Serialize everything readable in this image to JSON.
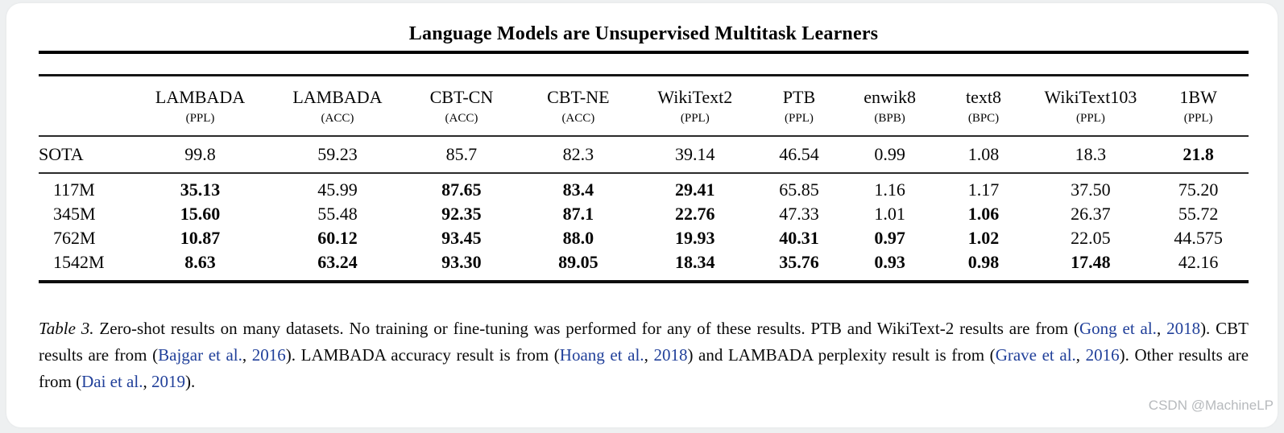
{
  "page": {
    "title": "Language Models are Unsupervised Multitask Learners",
    "watermark": "CSDN @MachineLP"
  },
  "colors": {
    "citation_link": "#21409a",
    "watermark_text": "#b7babd"
  },
  "table": {
    "columns": [
      {
        "name": "LAMBADA",
        "metric": "(PPL)"
      },
      {
        "name": "LAMBADA",
        "metric": "(ACC)"
      },
      {
        "name": "CBT-CN",
        "metric": "(ACC)"
      },
      {
        "name": "CBT-NE",
        "metric": "(ACC)"
      },
      {
        "name": "WikiText2",
        "metric": "(PPL)"
      },
      {
        "name": "PTB",
        "metric": "(PPL)"
      },
      {
        "name": "enwik8",
        "metric": "(BPB)"
      },
      {
        "name": "text8",
        "metric": "(BPC)"
      },
      {
        "name": "WikiText103",
        "metric": "(PPL)"
      },
      {
        "name": "1BW",
        "metric": "(PPL)"
      }
    ],
    "sota_row": {
      "label": "SOTA",
      "cells": [
        {
          "v": "99.8",
          "bold": false
        },
        {
          "v": "59.23",
          "bold": false
        },
        {
          "v": "85.7",
          "bold": false
        },
        {
          "v": "82.3",
          "bold": false
        },
        {
          "v": "39.14",
          "bold": false
        },
        {
          "v": "46.54",
          "bold": false
        },
        {
          "v": "0.99",
          "bold": false
        },
        {
          "v": "1.08",
          "bold": false
        },
        {
          "v": "18.3",
          "bold": false
        },
        {
          "v": "21.8",
          "bold": true
        }
      ]
    },
    "model_rows": [
      {
        "label": "117M",
        "cells": [
          {
            "v": "35.13",
            "bold": true
          },
          {
            "v": "45.99",
            "bold": false
          },
          {
            "v": "87.65",
            "bold": true
          },
          {
            "v": "83.4",
            "bold": true
          },
          {
            "v": "29.41",
            "bold": true
          },
          {
            "v": "65.85",
            "bold": false
          },
          {
            "v": "1.16",
            "bold": false
          },
          {
            "v": "1.17",
            "bold": false
          },
          {
            "v": "37.50",
            "bold": false
          },
          {
            "v": "75.20",
            "bold": false
          }
        ]
      },
      {
        "label": "345M",
        "cells": [
          {
            "v": "15.60",
            "bold": true
          },
          {
            "v": "55.48",
            "bold": false
          },
          {
            "v": "92.35",
            "bold": true
          },
          {
            "v": "87.1",
            "bold": true
          },
          {
            "v": "22.76",
            "bold": true
          },
          {
            "v": "47.33",
            "bold": false
          },
          {
            "v": "1.01",
            "bold": false
          },
          {
            "v": "1.06",
            "bold": true
          },
          {
            "v": "26.37",
            "bold": false
          },
          {
            "v": "55.72",
            "bold": false
          }
        ]
      },
      {
        "label": "762M",
        "cells": [
          {
            "v": "10.87",
            "bold": true
          },
          {
            "v": "60.12",
            "bold": true
          },
          {
            "v": "93.45",
            "bold": true
          },
          {
            "v": "88.0",
            "bold": true
          },
          {
            "v": "19.93",
            "bold": true
          },
          {
            "v": "40.31",
            "bold": true
          },
          {
            "v": "0.97",
            "bold": true
          },
          {
            "v": "1.02",
            "bold": true
          },
          {
            "v": "22.05",
            "bold": false
          },
          {
            "v": "44.575",
            "bold": false
          }
        ]
      },
      {
        "label": "1542M",
        "cells": [
          {
            "v": "8.63",
            "bold": true
          },
          {
            "v": "63.24",
            "bold": true
          },
          {
            "v": "93.30",
            "bold": true
          },
          {
            "v": "89.05",
            "bold": true
          },
          {
            "v": "18.34",
            "bold": true
          },
          {
            "v": "35.76",
            "bold": true
          },
          {
            "v": "0.93",
            "bold": true
          },
          {
            "v": "0.98",
            "bold": true
          },
          {
            "v": "17.48",
            "bold": true
          },
          {
            "v": "42.16",
            "bold": false
          }
        ]
      }
    ]
  },
  "caption": {
    "segments": [
      {
        "t": "Table 3.",
        "s": "italic"
      },
      {
        "t": " Zero-shot results on many datasets.  No training or fine-tuning was performed for any of these results.  PTB and WikiText-2 results are from (",
        "s": "text"
      },
      {
        "t": "Gong et al.",
        "s": "cite"
      },
      {
        "t": ", ",
        "s": "text"
      },
      {
        "t": "2018",
        "s": "cite"
      },
      {
        "t": "). CBT results are from (",
        "s": "text"
      },
      {
        "t": "Bajgar et al.",
        "s": "cite"
      },
      {
        "t": ", ",
        "s": "text"
      },
      {
        "t": "2016",
        "s": "cite"
      },
      {
        "t": "). LAMBADA accuracy result is from (",
        "s": "text"
      },
      {
        "t": "Hoang et al.",
        "s": "cite"
      },
      {
        "t": ", ",
        "s": "text"
      },
      {
        "t": "2018",
        "s": "cite"
      },
      {
        "t": ") and LAMBADA perplexity result is from (",
        "s": "text"
      },
      {
        "t": "Grave et al.",
        "s": "cite"
      },
      {
        "t": ", ",
        "s": "text"
      },
      {
        "t": "2016",
        "s": "cite"
      },
      {
        "t": "). Other results are from (",
        "s": "text"
      },
      {
        "t": "Dai et al.",
        "s": "cite"
      },
      {
        "t": ", ",
        "s": "text"
      },
      {
        "t": "2019",
        "s": "cite"
      },
      {
        "t": ").",
        "s": "text"
      }
    ]
  }
}
